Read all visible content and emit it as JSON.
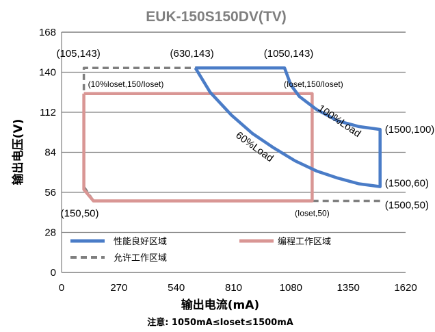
{
  "chart_data": {
    "type": "line",
    "title": "EUK-150S150DV(TV)",
    "xlabel": "输出电流(mA)",
    "ylabel": "输出电压(V)",
    "note": "注意: 1050mA≤Ioset≤1500mA",
    "xlim": [
      0,
      1620
    ],
    "ylim": [
      0,
      168
    ],
    "x_ticks": [
      "0",
      "270",
      "540",
      "810",
      "1080",
      "1350",
      "1620"
    ],
    "y_ticks": [
      "0",
      "28",
      "56",
      "84",
      "112",
      "140",
      "168"
    ],
    "grid": "horizontal",
    "legend_position": "bottom-left",
    "series": [
      {
        "name": "性能良好区域",
        "color": "#4a7cc7",
        "style": "solid",
        "points": [
          [
            630,
            143
          ],
          [
            1050,
            143
          ],
          [
            1080,
            131
          ],
          [
            1120,
            123
          ],
          [
            1200,
            114
          ],
          [
            1300,
            106
          ],
          [
            1400,
            102
          ],
          [
            1500,
            100
          ],
          [
            1500,
            60
          ],
          [
            1400,
            62
          ],
          [
            1300,
            66
          ],
          [
            1200,
            71
          ],
          [
            1100,
            78
          ],
          [
            1000,
            87
          ],
          [
            900,
            97
          ],
          [
            800,
            110
          ],
          [
            700,
            126
          ],
          [
            630,
            143
          ]
        ]
      },
      {
        "name": "允许工作区域",
        "color": "#7f7f7f",
        "style": "dashed",
        "points": [
          [
            1500,
            50
          ],
          [
            150,
            50
          ],
          [
            105,
            60
          ],
          [
            105,
            143
          ],
          [
            630,
            143
          ]
        ]
      },
      {
        "name": "编程工作区域",
        "color": "#d99694",
        "style": "solid",
        "points": [
          [
            105,
            125
          ],
          [
            1180,
            125
          ],
          [
            1180,
            50
          ],
          [
            150,
            50
          ],
          [
            105,
            58
          ],
          [
            105,
            125
          ]
        ]
      }
    ],
    "annotations": [
      {
        "text": "(105,143)",
        "x": 105,
        "y": 143
      },
      {
        "text": "(630,143)",
        "x": 630,
        "y": 143
      },
      {
        "text": "(1050,143)",
        "x": 1050,
        "y": 143
      },
      {
        "text": "(10%Ioset,150/Ioset)",
        "x": 105,
        "y": 125
      },
      {
        "text": "(Ioset,150/Ioset)",
        "x": 1180,
        "y": 125
      },
      {
        "text": "(1500,100)",
        "x": 1500,
        "y": 100
      },
      {
        "text": "100%Load",
        "x": 1300,
        "y": 104
      },
      {
        "text": "60%Load",
        "x": 900,
        "y": 86
      },
      {
        "text": "(1500,60)",
        "x": 1500,
        "y": 60
      },
      {
        "text": "(150,50)",
        "x": 150,
        "y": 50
      },
      {
        "text": "(Ioset,50)",
        "x": 1180,
        "y": 50
      },
      {
        "text": "(1500,50)",
        "x": 1500,
        "y": 50
      }
    ]
  }
}
